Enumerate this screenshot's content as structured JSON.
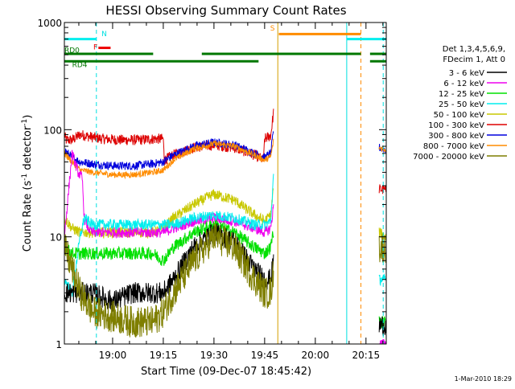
{
  "chart_data": {
    "type": "line",
    "title": "HESSI Observing Summary Count Rates",
    "xlabel": "Start Time (09-Dec-07 18:45:42)",
    "ylabel_prefix": "Count Rate (s",
    "ylabel_exp1": "-1",
    "ylabel_mid": " detector",
    "ylabel_exp2": "-1",
    "ylabel_suffix": ")",
    "yscale": "log",
    "xlim": [
      18.762,
      20.35
    ],
    "ylim": [
      1,
      1000
    ],
    "xticks": [
      {
        "v": 19.0,
        "label": "19:00"
      },
      {
        "v": 19.25,
        "label": "19:15"
      },
      {
        "v": 19.5,
        "label": "19:30"
      },
      {
        "v": 19.75,
        "label": "19:45"
      },
      {
        "v": 20.0,
        "label": "20:00"
      },
      {
        "v": 20.25,
        "label": "20:15"
      }
    ],
    "yticks": [
      {
        "v": 1,
        "label": "1"
      },
      {
        "v": 10,
        "label": "10"
      },
      {
        "v": 100,
        "label": "100"
      },
      {
        "v": 1000,
        "label": "1000"
      }
    ],
    "legend": {
      "placement": "right",
      "header": [
        "Det 1,3,4,5,6,9,",
        "FDecim 1, Att 0"
      ],
      "entries": [
        {
          "label": "3 - 6 keV",
          "color": "#000000"
        },
        {
          "label": "6 - 12 keV",
          "color": "#ee00ee"
        },
        {
          "label": "12 - 25 keV",
          "color": "#00e000"
        },
        {
          "label": "25 - 50 keV",
          "color": "#00eeee"
        },
        {
          "label": "50 - 100 keV",
          "color": "#c8c800"
        },
        {
          "label": "100 - 300 keV",
          "color": "#dd0000"
        },
        {
          "label": "300 - 800 keV",
          "color": "#0000dd"
        },
        {
          "label": "800 - 7000 keV",
          "color": "#ff8c00"
        },
        {
          "label": "7000 - 20000 keV",
          "color": "#7f7f00"
        }
      ]
    },
    "gaps": [
      [
        19.795,
        20.315
      ]
    ],
    "series": [
      {
        "color": "#dd0000",
        "noise": 0.05,
        "points": [
          [
            18.762,
            90
          ],
          [
            18.77,
            80
          ],
          [
            18.8,
            80
          ],
          [
            18.84,
            90
          ],
          [
            18.9,
            85
          ],
          [
            18.95,
            82
          ],
          [
            19.05,
            80
          ],
          [
            19.12,
            80
          ],
          [
            19.2,
            82
          ],
          [
            19.25,
            82
          ],
          [
            19.255,
            52
          ],
          [
            19.3,
            58
          ],
          [
            19.4,
            68
          ],
          [
            19.5,
            72
          ],
          [
            19.6,
            68
          ],
          [
            19.7,
            58
          ],
          [
            19.745,
            52
          ],
          [
            19.75,
            82
          ],
          [
            19.78,
            88
          ],
          [
            19.795,
            150
          ]
        ],
        "after": [
          [
            20.315,
            28
          ],
          [
            20.35,
            27
          ]
        ]
      },
      {
        "color": "#0000dd",
        "noise": 0.04,
        "points": [
          [
            18.762,
            65
          ],
          [
            18.8,
            55
          ],
          [
            18.84,
            50
          ],
          [
            18.9,
            48
          ],
          [
            19.0,
            46
          ],
          [
            19.1,
            46
          ],
          [
            19.2,
            48
          ],
          [
            19.25,
            50
          ],
          [
            19.3,
            58
          ],
          [
            19.4,
            70
          ],
          [
            19.5,
            76
          ],
          [
            19.6,
            72
          ],
          [
            19.7,
            60
          ],
          [
            19.75,
            55
          ],
          [
            19.78,
            60
          ],
          [
            19.795,
            100
          ]
        ],
        "after": [
          [
            20.315,
            68
          ],
          [
            20.35,
            65
          ]
        ]
      },
      {
        "color": "#ff8c00",
        "noise": 0.03,
        "points": [
          [
            18.762,
            60
          ],
          [
            18.8,
            50
          ],
          [
            18.84,
            42
          ],
          [
            18.9,
            40
          ],
          [
            19.0,
            38
          ],
          [
            19.1,
            38
          ],
          [
            19.2,
            40
          ],
          [
            19.25,
            42
          ],
          [
            19.3,
            52
          ],
          [
            19.4,
            66
          ],
          [
            19.5,
            74
          ],
          [
            19.6,
            70
          ],
          [
            19.7,
            58
          ],
          [
            19.75,
            52
          ],
          [
            19.78,
            56
          ],
          [
            19.795,
            80
          ]
        ],
        "after": [
          [
            20.315,
            68
          ],
          [
            20.35,
            65
          ]
        ]
      },
      {
        "color": "#c8c800",
        "noise": 0.05,
        "points": [
          [
            18.762,
            15
          ],
          [
            18.8,
            12
          ],
          [
            18.84,
            11
          ],
          [
            18.9,
            11
          ],
          [
            19.0,
            11
          ],
          [
            19.1,
            11
          ],
          [
            19.2,
            11
          ],
          [
            19.25,
            12
          ],
          [
            19.3,
            15
          ],
          [
            19.4,
            20
          ],
          [
            19.5,
            25
          ],
          [
            19.6,
            22
          ],
          [
            19.7,
            16
          ],
          [
            19.75,
            14
          ],
          [
            19.78,
            16
          ],
          [
            19.795,
            30
          ]
        ],
        "after": [
          [
            20.315,
            11
          ],
          [
            20.35,
            10
          ]
        ]
      },
      {
        "color": "#ee00ee",
        "noise": 0.05,
        "points": [
          [
            18.762,
            10
          ],
          [
            18.8,
            60
          ],
          [
            18.83,
            40
          ],
          [
            18.85,
            35
          ],
          [
            18.86,
            15
          ],
          [
            18.88,
            12
          ],
          [
            18.9,
            11
          ],
          [
            19.0,
            11
          ],
          [
            19.1,
            11
          ],
          [
            19.2,
            11
          ],
          [
            19.25,
            11
          ],
          [
            19.3,
            12
          ],
          [
            19.4,
            14
          ],
          [
            19.5,
            15
          ],
          [
            19.6,
            14
          ],
          [
            19.7,
            12
          ],
          [
            19.75,
            11
          ],
          [
            19.78,
            12
          ],
          [
            19.795,
            20
          ]
        ],
        "after": [
          [
            20.315,
            1
          ],
          [
            20.35,
            1
          ]
        ]
      },
      {
        "color": "#00eeee",
        "noise": 0.05,
        "points": [
          [
            18.762,
            4
          ],
          [
            18.8,
            3
          ],
          [
            18.84,
            10
          ],
          [
            18.86,
            15
          ],
          [
            18.9,
            13
          ],
          [
            19.0,
            13
          ],
          [
            19.1,
            13
          ],
          [
            19.2,
            13
          ],
          [
            19.25,
            13
          ],
          [
            19.3,
            13
          ],
          [
            19.4,
            15
          ],
          [
            19.5,
            16
          ],
          [
            19.6,
            15
          ],
          [
            19.7,
            13
          ],
          [
            19.75,
            13
          ],
          [
            19.78,
            14
          ],
          [
            19.795,
            40
          ]
        ],
        "after": [
          [
            20.315,
            4
          ],
          [
            20.35,
            4
          ]
        ]
      },
      {
        "color": "#00e000",
        "noise": 0.06,
        "points": [
          [
            18.762,
            8
          ],
          [
            18.8,
            7
          ],
          [
            18.84,
            7
          ],
          [
            18.9,
            7
          ],
          [
            19.0,
            7
          ],
          [
            19.1,
            7
          ],
          [
            19.2,
            7
          ],
          [
            19.25,
            6
          ],
          [
            19.3,
            8
          ],
          [
            19.4,
            11
          ],
          [
            19.5,
            13
          ],
          [
            19.6,
            11
          ],
          [
            19.7,
            8
          ],
          [
            19.75,
            7
          ],
          [
            19.78,
            8
          ],
          [
            19.795,
            12
          ]
        ],
        "after": [
          [
            20.315,
            1.6
          ],
          [
            20.35,
            1.6
          ]
        ]
      },
      {
        "color": "#000000",
        "noise": 0.1,
        "points": [
          [
            18.762,
            3
          ],
          [
            18.8,
            3
          ],
          [
            18.84,
            3
          ],
          [
            18.9,
            3
          ],
          [
            19.0,
            2.5
          ],
          [
            19.1,
            3
          ],
          [
            19.2,
            3
          ],
          [
            19.25,
            3
          ],
          [
            19.3,
            4
          ],
          [
            19.4,
            8
          ],
          [
            19.5,
            11
          ],
          [
            19.6,
            9
          ],
          [
            19.7,
            5
          ],
          [
            19.75,
            4
          ],
          [
            19.78,
            4
          ],
          [
            19.795,
            6
          ]
        ],
        "after": [
          [
            20.315,
            1.5
          ],
          [
            20.35,
            1.5
          ]
        ]
      },
      {
        "color": "#7f7f00",
        "noise": 0.15,
        "points": [
          [
            18.762,
            8
          ],
          [
            18.8,
            5
          ],
          [
            18.84,
            3
          ],
          [
            18.9,
            2
          ],
          [
            19.0,
            1.8
          ],
          [
            19.1,
            1.6
          ],
          [
            19.2,
            1.6
          ],
          [
            19.25,
            2
          ],
          [
            19.3,
            3
          ],
          [
            19.4,
            6
          ],
          [
            19.5,
            10
          ],
          [
            19.6,
            8
          ],
          [
            19.7,
            4
          ],
          [
            19.75,
            3
          ],
          [
            19.78,
            3
          ],
          [
            19.795,
            5
          ]
        ],
        "after": [
          [
            20.315,
            8
          ],
          [
            20.35,
            8
          ]
        ]
      }
    ],
    "vlines": [
      {
        "x": 18.92,
        "color": "#00e0e0",
        "dashed": true
      },
      {
        "x": 19.815,
        "color": "#d4a000",
        "dashed": false
      },
      {
        "x": 20.155,
        "color": "#00e0e0",
        "dashed": false
      },
      {
        "x": 20.225,
        "color": "#ff8c00",
        "dashed": true
      },
      {
        "x": 20.335,
        "color": "#00e0e0",
        "dashed": true
      }
    ],
    "flag_bars": [
      {
        "label": "",
        "color": "#00eeee",
        "y": 700,
        "segments": [
          [
            18.762,
            18.92
          ],
          [
            20.155,
            20.35
          ]
        ]
      },
      {
        "label": "N",
        "color": "#00e0e0",
        "y": 700,
        "segments": []
      },
      {
        "label": "F",
        "color": "#ee0000",
        "y": 580,
        "segments": [
          [
            18.93,
            18.99
          ]
        ]
      },
      {
        "label": "S",
        "color": "#ff8c00",
        "y": 780,
        "segments": [
          [
            19.82,
            20.225
          ]
        ]
      },
      {
        "label": "RD0",
        "color": "#007700",
        "y": 510,
        "segments": [
          [
            18.762,
            19.2
          ],
          [
            19.44,
            20.225
          ],
          [
            20.27,
            20.35
          ]
        ]
      },
      {
        "label": "RD4",
        "color": "#007700",
        "y": 435,
        "segments": [
          [
            18.762,
            19.72
          ],
          [
            20.27,
            20.35
          ]
        ]
      }
    ],
    "timestamp": "1-Mar-2010 18:29"
  }
}
